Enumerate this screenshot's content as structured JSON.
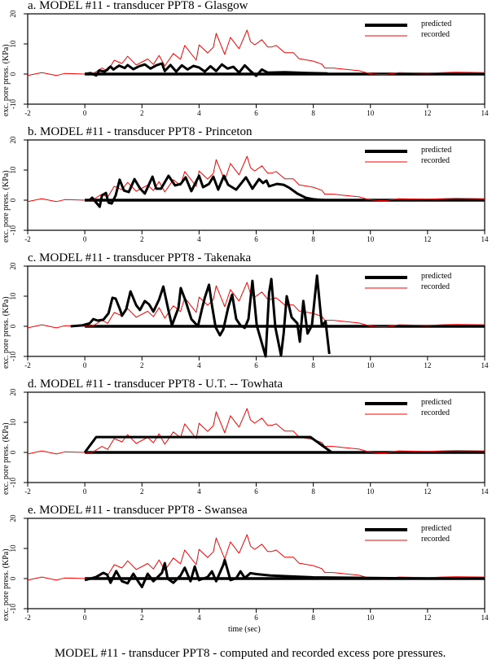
{
  "figure": {
    "caption": "MODEL #11 - transducer PPT8 - computed and recorded excess pore pressures.",
    "xlabel": "time (sec)",
    "ylabel": "exc. pore press. (KPa)",
    "legend": {
      "predicted": "predicted",
      "recorded": "recorded"
    },
    "colors": {
      "predicted": "#000000",
      "recorded": "#ff0000",
      "axis": "#000000"
    },
    "x_ticks": [
      "-2",
      "0",
      "2",
      "4",
      "6",
      "8",
      "10",
      "12",
      "14"
    ],
    "y_ticks": [
      "20",
      "10",
      "0",
      "-10"
    ]
  },
  "chart_data": [
    {
      "type": "line",
      "title": "a. MODEL #11 - transducer PPT8 - Glasgow",
      "xlabel": "",
      "ylabel": "exc. pore press. (KPa)",
      "xlim": [
        -2,
        14
      ],
      "ylim": [
        -10,
        20
      ],
      "grid": false,
      "legend_position": "upper right",
      "series": [
        {
          "name": "predicted",
          "x": [
            0,
            0.2,
            0.4,
            0.5,
            0.7,
            0.9,
            1.0,
            1.2,
            1.4,
            1.5,
            1.7,
            1.9,
            2.1,
            2.3,
            2.5,
            2.7,
            2.8,
            3.0,
            3.2,
            3.4,
            3.6,
            3.8,
            4.0,
            4.2,
            4.4,
            4.6,
            4.8,
            5.0,
            5.2,
            5.4,
            5.6,
            5.8,
            6.0,
            6.2,
            6.4,
            7.0,
            8.0,
            8.5
          ],
          "values": [
            0,
            0.3,
            -0.5,
            1.2,
            0.8,
            2.5,
            1.5,
            2.8,
            2.0,
            3.0,
            1.6,
            2.6,
            3.2,
            1.8,
            2.9,
            3.5,
            1.0,
            3.0,
            0.8,
            2.9,
            1.5,
            2.7,
            2.2,
            0.8,
            2.6,
            1.0,
            3.2,
            1.8,
            2.4,
            0.5,
            2.9,
            1.0,
            -0.6,
            1.5,
            0.5,
            0.6,
            0.3,
            0.2
          ]
        },
        {
          "name": "recorded",
          "x": [
            -2,
            -1.6,
            -1.5,
            -1.0,
            -0.7,
            0,
            0.26,
            0.6,
            0.8,
            1.03,
            1.3,
            1.5,
            1.8,
            2.2,
            2.4,
            2.6,
            2.8,
            3.1,
            3.35,
            3.5,
            3.9,
            4.0,
            4.3,
            4.5,
            4.6,
            4.9,
            5.1,
            5.4,
            5.68,
            5.8,
            5.95,
            6.2,
            6.4,
            6.55,
            6.7,
            7.0,
            7.3,
            7.5,
            8.0,
            8.3,
            8.4,
            8.7,
            9.1,
            9.6,
            9.9,
            10.1,
            10.5,
            11.0,
            12.0,
            12.5,
            13.0,
            14.0
          ],
          "values": [
            -0.5,
            0.3,
            0.5,
            -0.5,
            0.2,
            0,
            0,
            2.0,
            1.0,
            4.6,
            3.5,
            5.9,
            3.0,
            5.0,
            3.2,
            6.2,
            2.7,
            6.8,
            4.9,
            9.5,
            4.6,
            9.7,
            7.0,
            8.9,
            13.5,
            6.5,
            12.2,
            8.4,
            14.6,
            10.8,
            9.7,
            11.4,
            9.0,
            9.0,
            9.5,
            7.1,
            7.1,
            5.1,
            4.3,
            3.3,
            2.0,
            2.0,
            1.6,
            1.1,
            0.3,
            0,
            -0.2,
            0.5,
            0.3,
            0.5,
            0.6,
            0.5
          ]
        }
      ]
    },
    {
      "type": "line",
      "title": "b. MODEL #11 - transducer PPT8 - Princeton",
      "xlabel": "",
      "ylabel": "exc. pore press. (KPa)",
      "xlim": [
        -2,
        14
      ],
      "ylim": [
        -10,
        20
      ],
      "grid": false,
      "legend_position": "upper right",
      "series": [
        {
          "name": "predicted",
          "x": [
            0,
            0.17,
            0.26,
            0.4,
            0.52,
            0.6,
            0.74,
            0.83,
            0.94,
            1.08,
            1.22,
            1.37,
            1.54,
            1.74,
            1.94,
            2.1,
            2.37,
            2.5,
            2.67,
            2.93,
            3.16,
            3.36,
            3.53,
            3.73,
            4.0,
            4.14,
            4.35,
            4.5,
            4.67,
            4.87,
            5.02,
            5.3,
            5.64,
            5.87,
            6.1,
            6.24,
            6.36,
            6.45,
            6.73,
            6.96,
            7.16,
            7.44,
            7.73,
            8.0,
            8.4
          ],
          "values": [
            0,
            0,
            0.8,
            -0.8,
            -2.2,
            1.6,
            2.4,
            -0.8,
            -1.1,
            1.6,
            6.8,
            3.2,
            2.7,
            7.0,
            3.8,
            2.2,
            7.8,
            3.8,
            3.8,
            8.1,
            4.9,
            5.4,
            7.6,
            3.0,
            8.1,
            4.3,
            5.4,
            7.8,
            3.5,
            8.1,
            5.1,
            3.5,
            7.6,
            3.8,
            7.0,
            5.7,
            6.5,
            4.6,
            5.4,
            5.1,
            4.1,
            2.2,
            0.8,
            0.3,
            0
          ]
        },
        {
          "name": "recorded",
          "x": [
            -2,
            -1.6,
            -1.5,
            -1.0,
            -0.7,
            0,
            0.26,
            0.6,
            0.8,
            1.03,
            1.3,
            1.5,
            1.8,
            2.2,
            2.4,
            2.6,
            2.8,
            3.1,
            3.35,
            3.5,
            3.9,
            4.0,
            4.3,
            4.5,
            4.6,
            4.9,
            5.1,
            5.4,
            5.68,
            5.8,
            5.95,
            6.2,
            6.4,
            6.55,
            6.7,
            7.0,
            7.3,
            7.5,
            8.0,
            8.3,
            8.4,
            8.7,
            9.1,
            9.6,
            9.9,
            10.1,
            10.5,
            11.0,
            12.0,
            12.5,
            13.0,
            14.0
          ],
          "values": [
            -0.5,
            0.3,
            0.5,
            -0.5,
            0.2,
            0,
            0,
            2.0,
            1.0,
            4.6,
            3.5,
            5.9,
            3.0,
            5.0,
            3.2,
            6.2,
            2.7,
            6.8,
            4.9,
            9.5,
            4.6,
            9.7,
            7.0,
            8.9,
            13.5,
            6.5,
            12.2,
            8.4,
            14.6,
            10.8,
            9.7,
            11.4,
            9.0,
            9.0,
            9.5,
            7.1,
            7.1,
            5.1,
            4.3,
            3.3,
            2.0,
            2.0,
            1.6,
            1.1,
            0.3,
            0,
            -0.2,
            0.5,
            0.3,
            0.5,
            0.6,
            0.5
          ]
        }
      ]
    },
    {
      "type": "line",
      "title": "c. MODEL #11 - transducer PPT8 - Takenaka",
      "xlabel": "",
      "ylabel": "exc. pore press. (KPa)",
      "xlim": [
        -2,
        14
      ],
      "ylim": [
        -10,
        20
      ],
      "grid": false,
      "legend_position": "upper right",
      "series": [
        {
          "name": "predicted",
          "x": [
            -0.5,
            -0.1,
            0.17,
            0.3,
            0.45,
            0.65,
            0.83,
            0.97,
            1.08,
            1.25,
            1.3,
            1.45,
            1.6,
            1.8,
            1.93,
            2.1,
            2.25,
            2.4,
            2.6,
            2.75,
            2.95,
            3.05,
            3.28,
            3.36,
            3.53,
            3.73,
            3.96,
            4.1,
            4.2,
            4.35,
            4.45,
            4.58,
            4.73,
            4.85,
            5.02,
            5.16,
            5.3,
            5.45,
            5.6,
            5.73,
            5.87,
            6.02,
            6.16,
            6.33,
            6.45,
            6.53,
            6.67,
            6.87,
            6.96,
            7.07,
            7.24,
            7.44,
            7.53,
            7.65,
            7.8,
            7.95,
            8.13,
            8.3,
            8.43,
            8.56
          ],
          "values": [
            0,
            0.3,
            1.0,
            2.4,
            1.9,
            2.2,
            4.3,
            9.5,
            9.2,
            5.1,
            3.5,
            5.7,
            11.6,
            7.0,
            5.4,
            8.4,
            7.3,
            4.9,
            8.9,
            13.2,
            4.3,
            0.3,
            6.2,
            12.7,
            8.4,
            2.4,
            0,
            5.7,
            9.5,
            13.8,
            7.0,
            -0.3,
            -3.0,
            -1.0,
            6.2,
            10.5,
            2.4,
            0.3,
            -0.5,
            2.4,
            15.1,
            0.3,
            -4.3,
            -10.0,
            11.0,
            15.7,
            -0.3,
            -9.7,
            -2.4,
            10.0,
            3.0,
            1.0,
            -5.1,
            8.4,
            -2.4,
            0.3,
            16.8,
            0.3,
            1.6,
            -9.2
          ]
        },
        {
          "name": "recorded",
          "x": [
            -2,
            -1.6,
            -1.5,
            -1.0,
            -0.7,
            0,
            0.26,
            0.6,
            0.8,
            1.03,
            1.3,
            1.5,
            1.8,
            2.2,
            2.4,
            2.6,
            2.8,
            3.1,
            3.35,
            3.5,
            3.9,
            4.0,
            4.3,
            4.5,
            4.6,
            4.9,
            5.1,
            5.4,
            5.68,
            5.8,
            5.95,
            6.2,
            6.4,
            6.55,
            6.7,
            7.0,
            7.3,
            7.5,
            8.0,
            8.3,
            8.4,
            8.7,
            9.1,
            9.6,
            9.9,
            10.1,
            10.5,
            11.0,
            12.0,
            12.5,
            13.0,
            14.0
          ],
          "values": [
            -0.5,
            0.3,
            0.5,
            -0.5,
            0.2,
            0,
            0,
            2.0,
            1.0,
            4.6,
            3.5,
            5.9,
            3.0,
            5.0,
            3.2,
            6.2,
            2.7,
            6.8,
            4.9,
            9.5,
            4.6,
            9.7,
            7.0,
            8.9,
            13.5,
            6.5,
            12.2,
            8.4,
            14.6,
            10.8,
            9.7,
            11.4,
            9.0,
            9.0,
            9.5,
            7.1,
            7.1,
            5.1,
            4.3,
            3.3,
            2.0,
            2.0,
            1.6,
            1.1,
            0.3,
            0,
            -0.2,
            0.5,
            0.3,
            0.5,
            0.6,
            0.5
          ]
        }
      ]
    },
    {
      "type": "line",
      "title": "d. MODEL #11 - transducer PPT8 - U.T. -- Towhata",
      "xlabel": "",
      "ylabel": "exc. pore press. (KPa)",
      "xlim": [
        -2,
        14
      ],
      "ylim": [
        -10,
        20
      ],
      "grid": false,
      "legend_position": "upper right",
      "series": [
        {
          "name": "predicted",
          "x": [
            0,
            0.4,
            7.9,
            8.65
          ],
          "values": [
            0,
            5.1,
            5.1,
            0
          ]
        },
        {
          "name": "recorded",
          "x": [
            -2,
            -1.6,
            -1.5,
            -1.0,
            -0.7,
            0,
            0.26,
            0.6,
            0.8,
            1.03,
            1.3,
            1.5,
            1.8,
            2.2,
            2.4,
            2.6,
            2.8,
            3.1,
            3.35,
            3.5,
            3.9,
            4.0,
            4.3,
            4.5,
            4.6,
            4.9,
            5.1,
            5.4,
            5.68,
            5.8,
            5.95,
            6.2,
            6.4,
            6.55,
            6.7,
            7.0,
            7.3,
            7.5,
            8.0,
            8.3,
            8.4,
            8.7,
            9.1,
            9.6,
            9.9,
            10.1,
            10.5,
            11.0,
            12.0,
            12.5,
            13.0,
            14.0
          ],
          "values": [
            -0.5,
            0.3,
            0.5,
            -0.5,
            0.2,
            0,
            0,
            2.0,
            1.0,
            4.6,
            3.5,
            5.9,
            3.0,
            5.0,
            3.2,
            6.2,
            2.7,
            6.8,
            4.9,
            9.5,
            4.6,
            9.7,
            7.0,
            8.9,
            13.5,
            6.5,
            12.2,
            8.4,
            14.6,
            10.8,
            9.7,
            11.4,
            9.0,
            9.0,
            9.5,
            7.1,
            7.1,
            5.1,
            4.3,
            3.3,
            2.0,
            2.0,
            1.6,
            1.1,
            0.3,
            0,
            -0.2,
            0.5,
            0.3,
            0.5,
            0.6,
            0.5
          ]
        }
      ]
    },
    {
      "type": "line",
      "title": "e. MODEL #11 - transducer PPT8 - Swansea",
      "xlabel": "time (sec)",
      "ylabel": "exc. pore press. (KPa)",
      "xlim": [
        -2,
        14
      ],
      "ylim": [
        -10,
        20
      ],
      "grid": false,
      "legend_position": "upper right",
      "series": [
        {
          "name": "predicted",
          "x": [
            0,
            0.4,
            0.65,
            0.78,
            0.9,
            1.1,
            1.3,
            1.5,
            1.7,
            1.9,
            2.0,
            2.2,
            2.4,
            2.7,
            2.8,
            2.9,
            3.1,
            3.35,
            3.5,
            3.7,
            3.85,
            4.0,
            4.3,
            4.45,
            4.6,
            4.85,
            4.9,
            5.1,
            5.3,
            5.45,
            5.6,
            5.8,
            6.0,
            6.5,
            7.0,
            7.5,
            8.0,
            9.0,
            10.0,
            11.0,
            12.0,
            13.0,
            14.0
          ],
          "values": [
            -0.5,
            0.5,
            1.9,
            1.3,
            -1.4,
            2.5,
            -0.9,
            -1.6,
            1.6,
            -1.4,
            -2.8,
            1.6,
            -0.9,
            1.9,
            5.1,
            0,
            -1.4,
            1.0,
            3.6,
            -0.9,
            4.0,
            -0.5,
            0.5,
            2.4,
            -0.9,
            4.6,
            6.2,
            -0.5,
            0.1,
            2.4,
            0.2,
            1.8,
            1.5,
            1.0,
            0.8,
            0.6,
            0.4,
            0.3,
            0.2,
            0.1,
            0,
            0,
            0
          ]
        },
        {
          "name": "recorded",
          "x": [
            -2,
            -1.6,
            -1.5,
            -1.0,
            -0.7,
            0,
            0.26,
            0.6,
            0.8,
            1.03,
            1.3,
            1.5,
            1.8,
            2.2,
            2.4,
            2.6,
            2.8,
            3.1,
            3.35,
            3.5,
            3.9,
            4.0,
            4.3,
            4.5,
            4.6,
            4.9,
            5.1,
            5.4,
            5.68,
            5.8,
            5.95,
            6.2,
            6.4,
            6.55,
            6.7,
            7.0,
            7.3,
            7.5,
            8.0,
            8.3,
            8.4,
            8.7,
            9.1,
            9.6,
            9.9,
            10.1,
            10.5,
            11.0,
            12.0,
            12.5,
            13.0,
            14.0
          ],
          "values": [
            -0.5,
            0.3,
            0.5,
            -0.5,
            0.2,
            0,
            0,
            2.0,
            1.0,
            4.6,
            3.5,
            5.9,
            3.0,
            5.0,
            3.2,
            6.2,
            2.7,
            6.8,
            4.9,
            9.5,
            4.6,
            9.7,
            7.0,
            8.9,
            13.5,
            6.5,
            12.2,
            8.4,
            14.6,
            10.8,
            9.7,
            11.4,
            9.0,
            9.0,
            9.5,
            7.1,
            7.1,
            5.1,
            4.3,
            3.3,
            2.0,
            2.0,
            1.6,
            1.1,
            0.3,
            0,
            -0.2,
            0.5,
            0.3,
            0.5,
            0.6,
            0.5
          ]
        }
      ]
    }
  ]
}
